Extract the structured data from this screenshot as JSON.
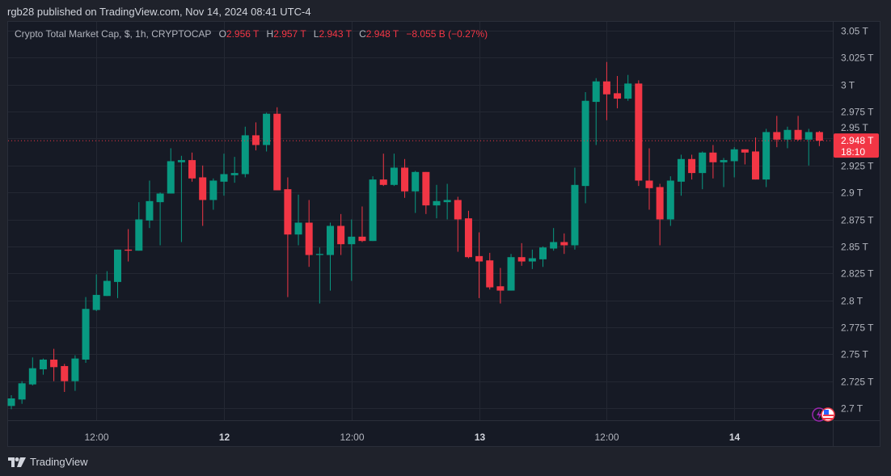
{
  "publisher_line": "rgb28 published on TradingView.com, Nov 14, 2024 08:41 UTC-4",
  "legend": {
    "symbol": "Crypto Total Market Cap, $, 1h, CRYPTOCAP",
    "o_label": "O",
    "o_value": "2.956 T",
    "h_label": "H",
    "h_value": "2.957 T",
    "l_label": "L",
    "l_value": "2.943 T",
    "c_label": "C",
    "c_value": "2.948 T",
    "change": "−8.055 B (−0.27%)"
  },
  "last_price": {
    "value": "2.948 T",
    "countdown": "18:10",
    "color": "#f23645"
  },
  "footer": {
    "brand": "TradingView"
  },
  "colors": {
    "up": "#089981",
    "down": "#f23645",
    "background": "#161a25",
    "grid": "#242833"
  },
  "icons": [
    "lightning-icon",
    "us-flag-icon",
    "tradingview-logo-icon"
  ],
  "chart_data": {
    "type": "candlestick",
    "interval": "1h",
    "ylim": [
      2.68,
      3.06
    ],
    "y_ticks": [
      "3.05 T",
      "3.025 T",
      "3 T",
      "2.975 T",
      "2.95 T",
      "2.925 T",
      "2.9 T",
      "2.875 T",
      "2.85 T",
      "2.825 T",
      "2.8 T",
      "2.775 T",
      "2.75 T",
      "2.725 T",
      "2.7 T"
    ],
    "y_tick_values": [
      3.05,
      3.025,
      3.0,
      2.975,
      2.95,
      2.925,
      2.9,
      2.875,
      2.85,
      2.825,
      2.8,
      2.775,
      2.75,
      2.725,
      2.7
    ],
    "x_ticks": [
      {
        "label": "12:00",
        "time": "2024-11-11 12:00",
        "bold": false
      },
      {
        "label": "12",
        "time": "2024-11-12 00:00",
        "bold": true
      },
      {
        "label": "12:00",
        "time": "2024-11-12 12:00",
        "bold": false
      },
      {
        "label": "13",
        "time": "2024-11-13 00:00",
        "bold": true
      },
      {
        "label": "12:00",
        "time": "2024-11-13 12:00",
        "bold": false
      },
      {
        "label": "14",
        "time": "2024-11-14 00:00",
        "bold": true
      }
    ],
    "first_bar_time": "2024-11-11 04:00",
    "grid": true,
    "ohlc": [
      [
        2.702,
        2.712,
        2.699,
        2.709
      ],
      [
        2.708,
        2.725,
        2.704,
        2.723
      ],
      [
        2.722,
        2.747,
        2.721,
        2.737
      ],
      [
        2.736,
        2.746,
        2.731,
        2.745
      ],
      [
        2.745,
        2.755,
        2.725,
        2.738
      ],
      [
        2.739,
        2.741,
        2.715,
        2.725
      ],
      [
        2.725,
        2.749,
        2.716,
        2.746
      ],
      [
        2.745,
        2.803,
        2.742,
        2.792
      ],
      [
        2.791,
        2.824,
        2.79,
        2.805
      ],
      [
        2.804,
        2.827,
        2.804,
        2.818
      ],
      [
        2.817,
        2.847,
        2.802,
        2.847
      ],
      [
        2.847,
        2.866,
        2.836,
        2.846
      ],
      [
        2.846,
        2.891,
        2.846,
        2.875
      ],
      [
        2.874,
        2.911,
        2.867,
        2.892
      ],
      [
        2.891,
        2.9,
        2.851,
        2.899
      ],
      [
        2.899,
        2.941,
        2.899,
        2.929
      ],
      [
        2.928,
        2.934,
        2.854,
        2.93
      ],
      [
        2.93,
        2.937,
        2.91,
        2.913
      ],
      [
        2.914,
        2.925,
        2.869,
        2.893
      ],
      [
        2.893,
        2.913,
        2.884,
        2.911
      ],
      [
        2.91,
        2.936,
        2.897,
        2.917
      ],
      [
        2.916,
        2.933,
        2.909,
        2.918
      ],
      [
        2.917,
        2.961,
        2.914,
        2.953
      ],
      [
        2.953,
        2.965,
        2.939,
        2.944
      ],
      [
        2.944,
        2.974,
        2.938,
        2.973
      ],
      [
        2.973,
        2.979,
        2.902,
        2.902
      ],
      [
        2.903,
        2.914,
        2.803,
        2.861
      ],
      [
        2.861,
        2.898,
        2.851,
        2.872
      ],
      [
        2.872,
        2.893,
        2.831,
        2.842
      ],
      [
        2.842,
        2.849,
        2.797,
        2.843
      ],
      [
        2.842,
        2.872,
        2.809,
        2.869
      ],
      [
        2.869,
        2.88,
        2.842,
        2.852
      ],
      [
        2.852,
        2.875,
        2.818,
        2.859
      ],
      [
        2.859,
        2.887,
        2.854,
        2.855
      ],
      [
        2.855,
        2.915,
        2.855,
        2.912
      ],
      [
        2.912,
        2.936,
        2.906,
        2.907
      ],
      [
        2.907,
        2.936,
        2.906,
        2.923
      ],
      [
        2.923,
        2.931,
        2.895,
        2.901
      ],
      [
        2.901,
        2.92,
        2.881,
        2.919
      ],
      [
        2.919,
        2.919,
        2.88,
        2.888
      ],
      [
        2.888,
        2.907,
        2.876,
        2.892
      ],
      [
        2.891,
        2.908,
        2.875,
        2.893
      ],
      [
        2.893,
        2.896,
        2.845,
        2.875
      ],
      [
        2.876,
        2.883,
        2.839,
        2.84
      ],
      [
        2.841,
        2.863,
        2.802,
        2.836
      ],
      [
        2.837,
        2.844,
        2.81,
        2.812
      ],
      [
        2.813,
        2.83,
        2.797,
        2.809
      ],
      [
        2.809,
        2.843,
        2.809,
        2.84
      ],
      [
        2.84,
        2.853,
        2.832,
        2.836
      ],
      [
        2.836,
        2.847,
        2.829,
        2.839
      ],
      [
        2.838,
        2.85,
        2.831,
        2.849
      ],
      [
        2.848,
        2.867,
        2.846,
        2.854
      ],
      [
        2.854,
        2.862,
        2.843,
        2.851
      ],
      [
        2.851,
        2.923,
        2.847,
        2.907
      ],
      [
        2.906,
        2.993,
        2.89,
        2.985
      ],
      [
        2.984,
        3.006,
        2.944,
        3.003
      ],
      [
        3.003,
        3.021,
        2.967,
        2.991
      ],
      [
        2.992,
        3.008,
        2.978,
        2.987
      ],
      [
        2.987,
        3.009,
        2.985,
        3.001
      ],
      [
        3.001,
        3.004,
        2.906,
        2.911
      ],
      [
        2.911,
        2.941,
        2.884,
        2.904
      ],
      [
        2.905,
        2.908,
        2.851,
        2.875
      ],
      [
        2.875,
        2.915,
        2.869,
        2.911
      ],
      [
        2.91,
        2.935,
        2.897,
        2.931
      ],
      [
        2.931,
        2.935,
        2.912,
        2.918
      ],
      [
        2.918,
        2.938,
        2.903,
        2.937
      ],
      [
        2.937,
        2.944,
        2.913,
        2.928
      ],
      [
        2.928,
        2.932,
        2.905,
        2.93
      ],
      [
        2.929,
        2.942,
        2.914,
        2.94
      ],
      [
        2.94,
        2.94,
        2.926,
        2.937
      ],
      [
        2.938,
        2.951,
        2.912,
        2.912
      ],
      [
        2.912,
        2.959,
        2.905,
        2.956
      ],
      [
        2.956,
        2.971,
        2.942,
        2.949
      ],
      [
        2.949,
        2.961,
        2.941,
        2.958
      ],
      [
        2.958,
        2.971,
        2.948,
        2.949
      ],
      [
        2.949,
        2.959,
        2.925,
        2.956
      ],
      [
        2.956,
        2.957,
        2.943,
        2.948
      ]
    ],
    "ohlc_order": [
      "open",
      "high",
      "low",
      "close"
    ],
    "last_price_line": 2.948
  }
}
